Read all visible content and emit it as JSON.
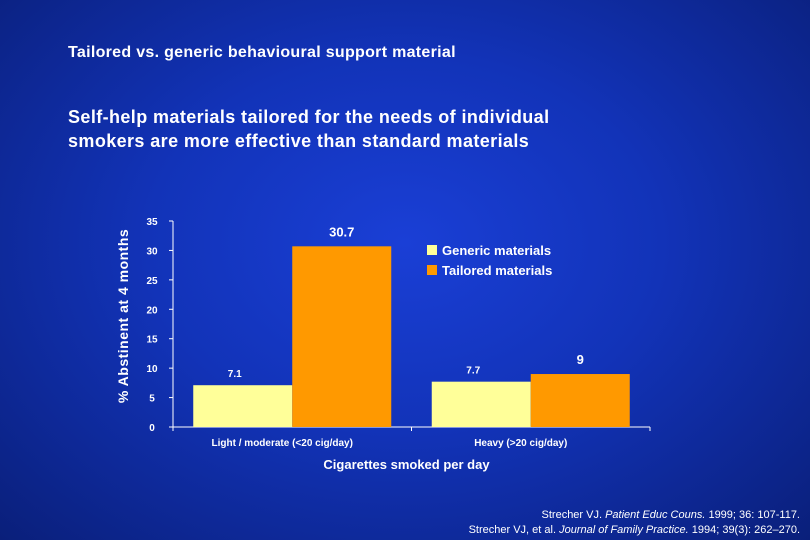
{
  "slide": {
    "title": "Tailored vs. generic behavioural support material",
    "subtitle_line1": "Self-help materials tailored for the needs of individual",
    "subtitle_line2": "smokers are more effective than standard materials"
  },
  "references": [
    {
      "prefix": "Strecher VJ. ",
      "journal": "Patient Educ Couns.",
      "suffix": " 1999; 36: 107-117."
    },
    {
      "prefix": "Strecher VJ, et al. ",
      "journal": "Journal of Family Practice.",
      "suffix": " 1994; 39(3): 262–270."
    }
  ],
  "colors": {
    "generic": "#ffff99",
    "tailored": "#ff9900",
    "axis": "#ffffff",
    "background": "#1233b8"
  },
  "chart_data": {
    "type": "bar",
    "title": "",
    "xlabel": "Cigarettes smoked per day",
    "ylabel": "% Abstinent at 4 months",
    "categories": [
      "Light / moderate (<20 cig/day)",
      "Heavy (>20 cig/day)"
    ],
    "series": [
      {
        "name": "Generic materials",
        "values": [
          7.1,
          7.7
        ],
        "labels": [
          "7.1",
          "7.7"
        ]
      },
      {
        "name": "Tailored materials",
        "values": [
          30.7,
          9
        ],
        "labels": [
          "30.7",
          "9"
        ]
      }
    ],
    "ylim": [
      0,
      35
    ],
    "yticks": [
      0,
      5,
      10,
      15,
      20,
      25,
      30,
      35
    ],
    "legend": "top-right",
    "grid": false
  }
}
